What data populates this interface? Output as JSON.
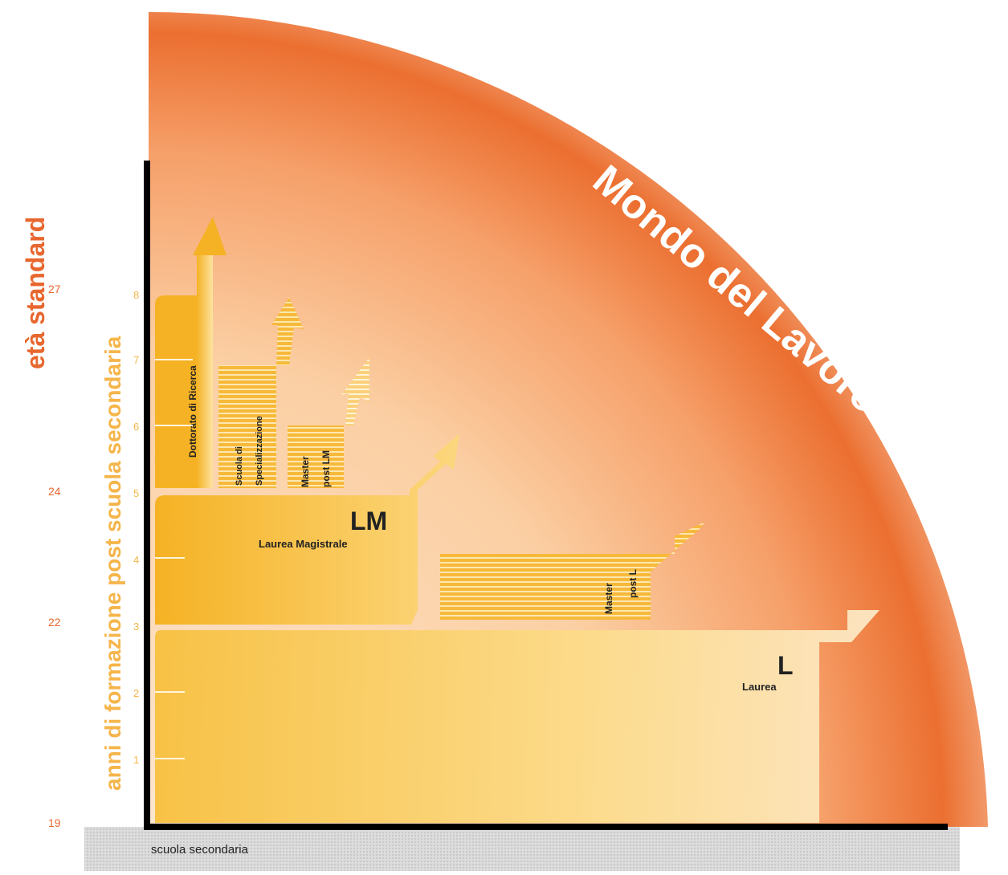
{
  "axes": {
    "age_title": "età standard",
    "years_title": "anni di formazione post scuola secondaria",
    "age_ticks": [
      "27",
      "24",
      "22",
      "19"
    ],
    "year_ticks": [
      "8",
      "7",
      "6",
      "5",
      "4",
      "3",
      "2",
      "1"
    ],
    "baseline_label": "scuola secondaria"
  },
  "arc_label": "Mondo del Lavoro",
  "blocks": {
    "dottorato": "Dottorato di Ricerca",
    "specializzazione_1": "Scuola di",
    "specializzazione_2": "Specializzazione",
    "master_lm_1": "Master",
    "master_lm_2": "post LM",
    "lm_abbr": "LM",
    "lm_name": "Laurea Magistrale",
    "master_l_1": "Master",
    "master_l_2": "post L",
    "l_abbr": "L",
    "l_name": "Laurea"
  },
  "colors": {
    "arc_dark": "#e8682a",
    "arc_light": "#fbd6b2",
    "block_yellow": "#f5b224",
    "block_light": "#fde9b8",
    "axis_orange": "#e8672f",
    "axis_light_orange": "#f5b54a",
    "axis_line": "#000000",
    "baseline_gray": "#d8d8d8"
  }
}
